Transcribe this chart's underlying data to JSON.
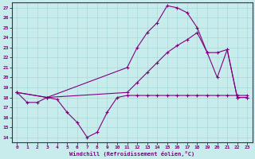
{
  "xlabel": "Windchill (Refroidissement éolien,°C)",
  "bg_color": "#c8ecec",
  "grid_color": "#a8d8d8",
  "line_color": "#800080",
  "spine_color": "#800080",
  "xlim": [
    -0.5,
    23.5
  ],
  "ylim": [
    13.5,
    27.5
  ],
  "xticks": [
    0,
    1,
    2,
    3,
    4,
    5,
    6,
    7,
    8,
    9,
    10,
    11,
    12,
    13,
    14,
    15,
    16,
    17,
    18,
    19,
    20,
    21,
    22,
    23
  ],
  "yticks": [
    14,
    15,
    16,
    17,
    18,
    19,
    20,
    21,
    22,
    23,
    24,
    25,
    26,
    27
  ],
  "series1_x": [
    0,
    1,
    2,
    3,
    4,
    5,
    6,
    7,
    8,
    9,
    10,
    11,
    12,
    13,
    14,
    15,
    16,
    17,
    18,
    19,
    20,
    21,
    22,
    23
  ],
  "series1_y": [
    18.5,
    17.5,
    17.5,
    18.0,
    17.8,
    16.5,
    15.5,
    14.0,
    14.5,
    16.5,
    18.0,
    18.2,
    18.2,
    18.2,
    18.2,
    18.2,
    18.2,
    18.2,
    18.2,
    18.2,
    18.2,
    18.2,
    18.2,
    18.2
  ],
  "series2_x": [
    0,
    3,
    11,
    12,
    13,
    14,
    15,
    16,
    17,
    18,
    19,
    20,
    21,
    22,
    23
  ],
  "series2_y": [
    18.5,
    18.0,
    21.0,
    23.0,
    24.5,
    25.5,
    27.2,
    27.0,
    26.5,
    25.0,
    22.5,
    20.0,
    22.8,
    18.0,
    18.0
  ],
  "series3_x": [
    0,
    3,
    11,
    12,
    13,
    14,
    15,
    16,
    17,
    18,
    19,
    20,
    21,
    22,
    23
  ],
  "series3_y": [
    18.5,
    18.0,
    18.5,
    19.5,
    20.5,
    21.5,
    22.5,
    23.2,
    23.8,
    24.5,
    22.5,
    22.5,
    22.8,
    18.0,
    18.0
  ]
}
